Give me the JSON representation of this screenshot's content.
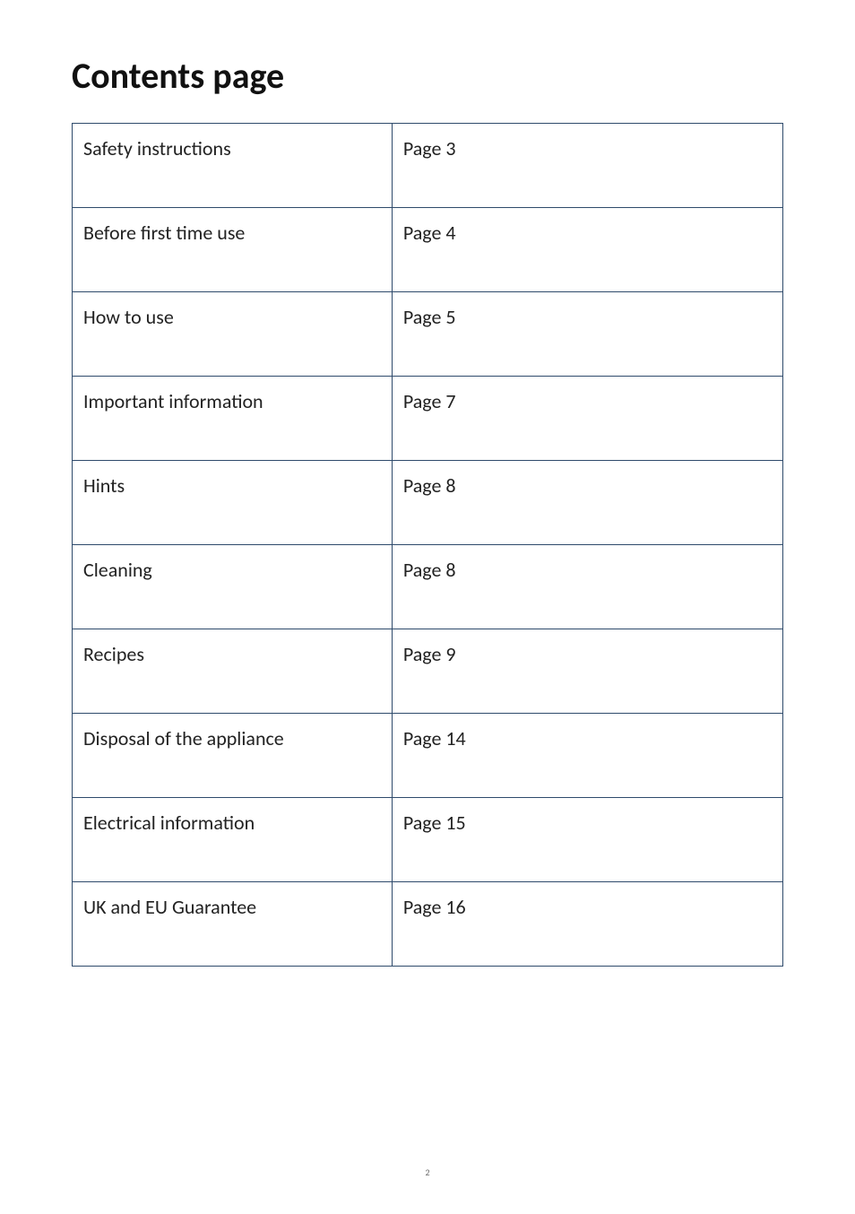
{
  "page": {
    "title": "Contents page",
    "page_number": "2",
    "title_fontsize": 40,
    "body_fontsize": 22,
    "text_color": "#222222",
    "border_color": "#2e4a6b",
    "background_color": "#ffffff",
    "col_widths_percent": [
      45,
      55
    ]
  },
  "toc": {
    "columns": [
      "topic",
      "page"
    ],
    "rows": [
      {
        "topic": "Safety instructions",
        "page": "Page 3"
      },
      {
        "topic": "Before first time use",
        "page": "Page 4"
      },
      {
        "topic": "How to use",
        "page": "Page 5"
      },
      {
        "topic": "Important information",
        "page": "Page 7"
      },
      {
        "topic": "Hints",
        "page": "Page 8"
      },
      {
        "topic": "Cleaning",
        "page": "Page 8"
      },
      {
        "topic": "Recipes",
        "page": "Page 9"
      },
      {
        "topic": "Disposal of the appliance",
        "page": "Page 14"
      },
      {
        "topic": "Electrical information",
        "page": "Page 15"
      },
      {
        "topic": "UK and EU Guarantee",
        "page": "Page 16"
      }
    ]
  }
}
